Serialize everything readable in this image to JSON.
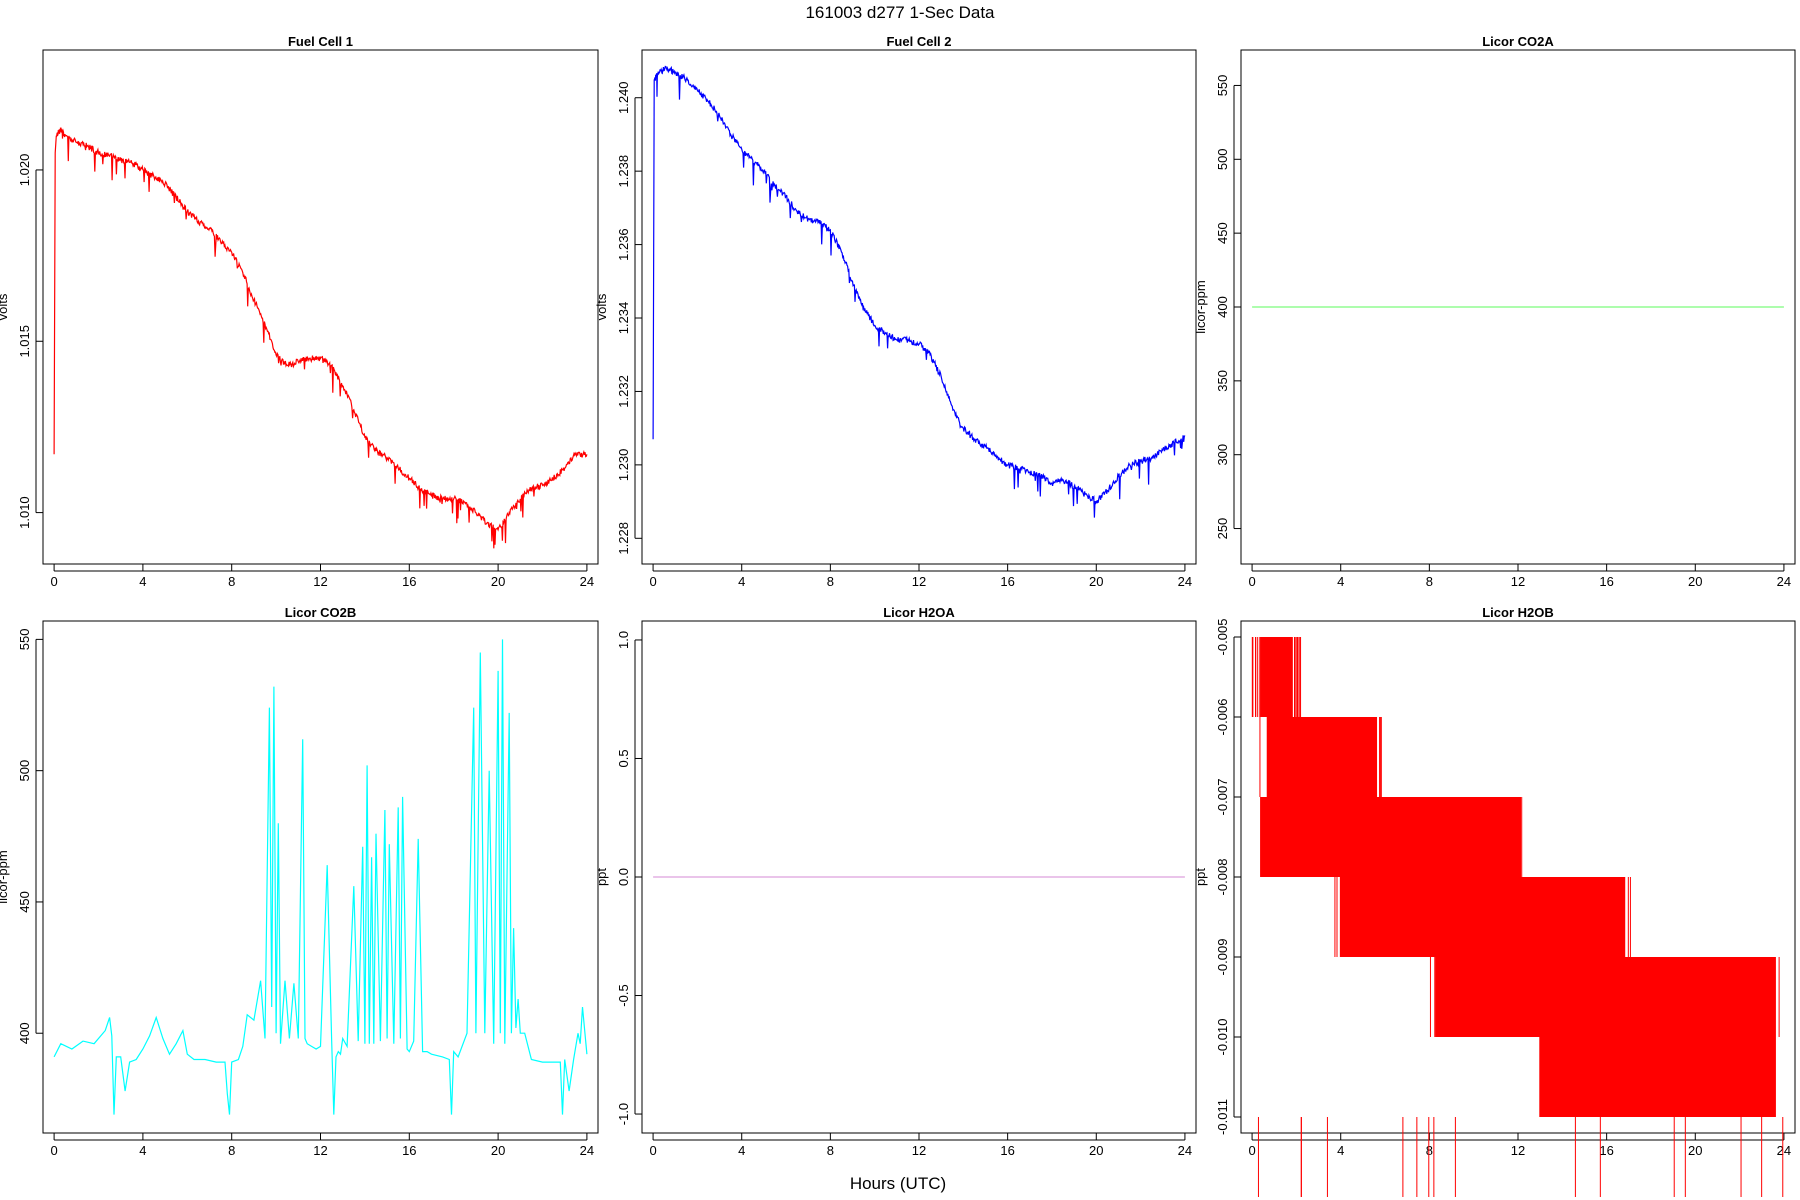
{
  "figure": {
    "title": "161003   d277   1-Sec Data",
    "xlabel": "Hours (UTC)"
  },
  "chart_data": [
    {
      "type": "line",
      "title": "Fuel Cell 1",
      "ylabel": "volts",
      "color": "#ff0000",
      "xlim": [
        -0.5,
        24.5
      ],
      "ylim": [
        1.0085,
        1.0235
      ],
      "xticks": [
        0,
        4,
        8,
        12,
        16,
        20,
        24
      ],
      "yticks": [
        1.01,
        1.015,
        1.02
      ],
      "ytick_labels": [
        "1.010",
        "1.015",
        "1.020"
      ],
      "series": [
        {
          "x": [
            0,
            0.05,
            0.1,
            0.3,
            0.5,
            1,
            1.5,
            2,
            2.5,
            3,
            3.5,
            4,
            4.5,
            5,
            5.5,
            6,
            6.5,
            7,
            7.5,
            8,
            8.5,
            9,
            9.5,
            10,
            10.5,
            11,
            11.5,
            12,
            12.5,
            13,
            13.5,
            14,
            14.5,
            15,
            15.5,
            16,
            16.5,
            17,
            17.5,
            18,
            18.5,
            19,
            19.5,
            20,
            20.5,
            21,
            21.5,
            22,
            22.5,
            23,
            23.5,
            24
          ],
          "y": [
            1.0117,
            1.0205,
            1.021,
            1.0212,
            1.021,
            1.0208,
            1.0207,
            1.0205,
            1.0204,
            1.0203,
            1.0202,
            1.02,
            1.0198,
            1.0196,
            1.0192,
            1.0188,
            1.0185,
            1.0183,
            1.0179,
            1.0176,
            1.017,
            1.0162,
            1.0155,
            1.0146,
            1.0143,
            1.0144,
            1.0145,
            1.0145,
            1.0143,
            1.0137,
            1.013,
            1.0122,
            1.0118,
            1.0116,
            1.0113,
            1.011,
            1.0107,
            1.0105,
            1.0104,
            1.0104,
            1.0103,
            1.01,
            1.0097,
            1.0095,
            1.01,
            1.0104,
            1.0107,
            1.0108,
            1.011,
            1.0113,
            1.0117,
            1.0117
          ]
        }
      ]
    },
    {
      "type": "line",
      "title": "Fuel Cell 2",
      "ylabel": "volts",
      "color": "#0000ff",
      "xlim": [
        -0.5,
        24.5
      ],
      "ylim": [
        1.2273,
        1.2413
      ],
      "xticks": [
        0,
        4,
        8,
        12,
        16,
        20,
        24
      ],
      "yticks": [
        1.228,
        1.23,
        1.232,
        1.234,
        1.236,
        1.238,
        1.24
      ],
      "ytick_labels": [
        "1.228",
        "1.230",
        "1.232",
        "1.234",
        "1.236",
        "1.238",
        "1.240"
      ],
      "series": [
        {
          "x": [
            0,
            0.05,
            0.3,
            0.6,
            1,
            1.5,
            2,
            2.5,
            3,
            3.5,
            4,
            4.5,
            5,
            5.5,
            6,
            6.5,
            7,
            7.5,
            8,
            8.5,
            9,
            9.5,
            10,
            10.5,
            11,
            11.5,
            12,
            12.5,
            13,
            13.5,
            14,
            14.5,
            15,
            15.5,
            16,
            16.5,
            17,
            17.5,
            18,
            18.5,
            19,
            19.5,
            20,
            20.5,
            21,
            21.5,
            22,
            22.5,
            23,
            23.5,
            24
          ],
          "y": [
            1.2307,
            1.2405,
            1.2407,
            1.2408,
            1.2407,
            1.2405,
            1.2402,
            1.2399,
            1.2395,
            1.239,
            1.2386,
            1.2383,
            1.238,
            1.2376,
            1.2373,
            1.2369,
            1.2367,
            1.2366,
            1.2364,
            1.2358,
            1.235,
            1.2343,
            1.2338,
            1.2336,
            1.2334,
            1.2334,
            1.2333,
            1.233,
            1.2324,
            1.2316,
            1.231,
            1.2307,
            1.2305,
            1.2302,
            1.23,
            1.2299,
            1.2298,
            1.2297,
            1.2295,
            1.2296,
            1.2294,
            1.2292,
            1.229,
            1.2293,
            1.2297,
            1.23,
            1.2301,
            1.2302,
            1.2304,
            1.2306,
            1.2308
          ]
        }
      ]
    },
    {
      "type": "line",
      "title": "Licor CO2A",
      "ylabel": "licor-ppm",
      "color": "#7cfc7c",
      "xlim": [
        -0.5,
        24.5
      ],
      "ylim": [
        226,
        574
      ],
      "xticks": [
        0,
        4,
        8,
        12,
        16,
        20,
        24
      ],
      "yticks": [
        250,
        300,
        350,
        400,
        450,
        500,
        550
      ],
      "ytick_labels": [
        "250",
        "300",
        "350",
        "400",
        "450",
        "500",
        "550"
      ],
      "series": [
        {
          "x": [
            0,
            24
          ],
          "y": [
            400,
            400
          ]
        }
      ]
    },
    {
      "type": "line",
      "title": "Licor CO2B",
      "ylabel": "licor-ppm",
      "color": "#00ffff",
      "xlim": [
        -0.5,
        24.5
      ],
      "ylim": [
        362,
        557
      ],
      "xticks": [
        0,
        4,
        8,
        12,
        16,
        20,
        24
      ],
      "yticks": [
        400,
        450,
        500,
        550
      ],
      "ytick_labels": [
        "400",
        "450",
        "500",
        "550"
      ],
      "series": [
        {
          "x": [
            0,
            0.3,
            0.8,
            1.3,
            1.8,
            2.3,
            2.5,
            2.6,
            2.7,
            2.8,
            3.0,
            3.2,
            3.4,
            3.7,
            4.0,
            4.3,
            4.6,
            4.9,
            5.2,
            5.5,
            5.8,
            6.0,
            6.3,
            6.8,
            7.3,
            7.7,
            7.8,
            7.9,
            8.0,
            8.3,
            8.5,
            8.7,
            9.0,
            9.3,
            9.5,
            9.7,
            9.8,
            9.9,
            10.0,
            10.1,
            10.2,
            10.4,
            10.6,
            10.8,
            11.0,
            11.2,
            11.3,
            11.4,
            11.6,
            11.8,
            12.0,
            12.3,
            12.5,
            12.6,
            12.7,
            12.8,
            12.9,
            13.0,
            13.2,
            13.5,
            13.7,
            13.9,
            14.0,
            14.1,
            14.2,
            14.3,
            14.4,
            14.5,
            14.7,
            14.9,
            15.0,
            15.1,
            15.3,
            15.5,
            15.6,
            15.7,
            15.9,
            16.0,
            16.2,
            16.4,
            16.6,
            16.8,
            17.0,
            17.5,
            17.8,
            17.9,
            18.0,
            18.2,
            18.6,
            18.9,
            19.0,
            19.2,
            19.4,
            19.6,
            19.8,
            20.0,
            20.1,
            20.2,
            20.3,
            20.5,
            20.6,
            20.7,
            20.8,
            20.9,
            21.0,
            21.2,
            21.5,
            22.0,
            22.5,
            22.8,
            22.9,
            23.0,
            23.2,
            23.4,
            23.6,
            23.7,
            23.8,
            24.0
          ],
          "y": [
            391,
            396,
            394,
            397,
            396,
            401,
            406,
            399,
            369,
            391,
            391,
            378,
            389,
            390,
            394,
            399,
            406,
            398,
            392,
            396,
            401,
            392,
            390,
            390,
            389,
            389,
            377,
            369,
            389,
            390,
            395,
            407,
            405,
            420,
            398,
            524,
            410,
            532,
            400,
            480,
            396,
            420,
            398,
            419,
            398,
            512,
            398,
            396,
            395,
            394,
            395,
            464,
            398,
            369,
            391,
            393,
            392,
            398,
            395,
            456,
            397,
            471,
            396,
            502,
            396,
            467,
            396,
            476,
            397,
            485,
            398,
            472,
            396,
            486,
            398,
            490,
            394,
            393,
            397,
            474,
            393,
            393,
            392,
            391,
            390,
            369,
            393,
            391,
            400,
            524,
            400,
            545,
            400,
            500,
            396,
            538,
            400,
            550,
            396,
            522,
            400,
            440,
            402,
            413,
            400,
            400,
            390,
            389,
            389,
            389,
            369,
            390,
            378,
            390,
            400,
            396,
            410,
            392
          ]
        }
      ]
    },
    {
      "type": "line",
      "title": "Licor H2OA",
      "ylabel": "ppt",
      "color": "#dda0dd",
      "xlim": [
        -0.5,
        24.5
      ],
      "ylim": [
        -1.08,
        1.08
      ],
      "xticks": [
        0,
        4,
        8,
        12,
        16,
        20,
        24
      ],
      "yticks": [
        -1,
        -0.5,
        0,
        0.5,
        1
      ],
      "ytick_labels": [
        "-1.0",
        "-0.5",
        "0.0",
        "0.5",
        "1.0"
      ],
      "series": [
        {
          "x": [
            0,
            24
          ],
          "y": [
            0,
            0
          ]
        }
      ]
    },
    {
      "type": "line",
      "title": "Licor H2OB",
      "ylabel": "ppt",
      "color": "#ff0000",
      "xlim": [
        -0.5,
        24.5
      ],
      "ylim": [
        -0.0112,
        -0.0048
      ],
      "xticks": [
        0,
        4,
        8,
        12,
        16,
        20,
        24
      ],
      "yticks": [
        -0.011,
        -0.01,
        -0.009,
        -0.008,
        -0.007,
        -0.006,
        -0.005
      ],
      "ytick_labels": [
        "-0.011",
        "-0.010",
        "-0.009",
        "-0.008",
        "-0.007",
        "-0.006",
        "-0.005"
      ],
      "levels": [
        {
          "value": -0.005,
          "x_range": [
            0,
            2.2
          ],
          "density": 1.0
        },
        {
          "value": -0.006,
          "x_range": [
            0.3,
            6.0
          ],
          "density": 0.9
        },
        {
          "value": -0.007,
          "x_range": [
            0,
            12.5
          ],
          "density": 0.9
        },
        {
          "value": -0.008,
          "x_range": [
            3.6,
            17.2
          ],
          "density": 0.85
        },
        {
          "value": -0.009,
          "x_range": [
            7.9,
            24
          ],
          "density": 0.9
        },
        {
          "value": -0.01,
          "x_range": [
            12.6,
            24
          ],
          "density": 0.9
        },
        {
          "value": -0.011,
          "x_range": [
            0,
            24
          ],
          "density": 0.2
        }
      ]
    }
  ]
}
